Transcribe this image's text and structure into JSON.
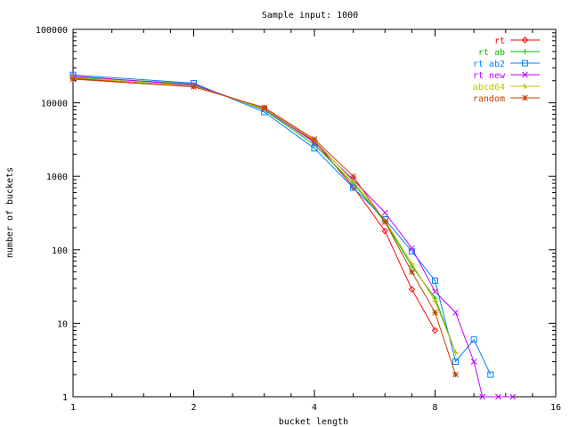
{
  "chart_data": {
    "type": "line",
    "title": "Sample input: 1000",
    "xlabel": "bucket length",
    "ylabel": "number of buckets",
    "x_scale": "log2",
    "y_scale": "log10",
    "xlim": [
      1,
      16
    ],
    "ylim": [
      1,
      100000
    ],
    "x_ticks": [
      1,
      2,
      4,
      8,
      16
    ],
    "x_tick_labels": [
      "1",
      "2",
      "4",
      "8",
      "16"
    ],
    "y_ticks": [
      1,
      10,
      100,
      1000,
      10000,
      100000
    ],
    "y_tick_labels": [
      "1",
      "10",
      "100",
      "1000",
      "10000",
      "100000"
    ],
    "grid": false,
    "legend_position": "top-right",
    "series": [
      {
        "name": "rt",
        "color": "#ff0000",
        "marker": "diamond",
        "points": [
          [
            1,
            21500
          ],
          [
            2,
            17000
          ],
          [
            3,
            8500
          ],
          [
            4,
            3000
          ],
          [
            5,
            720
          ],
          [
            6,
            180
          ],
          [
            7,
            29
          ],
          [
            8,
            8
          ]
        ]
      },
      {
        "name": "rt ab",
        "color": "#00c000",
        "marker": "plus",
        "points": [
          [
            1,
            22500
          ],
          [
            2,
            18000
          ],
          [
            3,
            8000
          ],
          [
            4,
            2700
          ],
          [
            5,
            800
          ],
          [
            6,
            240
          ],
          [
            7,
            60
          ],
          [
            8,
            22
          ],
          [
            9,
            4
          ]
        ]
      },
      {
        "name": "rt ab2",
        "color": "#0080ff",
        "marker": "square",
        "points": [
          [
            1,
            24000
          ],
          [
            2,
            18500
          ],
          [
            3,
            7500
          ],
          [
            4,
            2400
          ],
          [
            5,
            700
          ],
          [
            6,
            260
          ],
          [
            7,
            95
          ],
          [
            8,
            38
          ],
          [
            9,
            3
          ],
          [
            10,
            6
          ],
          [
            11,
            2
          ]
        ]
      },
      {
        "name": "rt new",
        "color": "#c000ff",
        "marker": "x",
        "points": [
          [
            1,
            23000
          ],
          [
            2,
            17500
          ],
          [
            3,
            8200
          ],
          [
            4,
            2900
          ],
          [
            5,
            900
          ],
          [
            6,
            320
          ],
          [
            7,
            105
          ],
          [
            8,
            27
          ],
          [
            9,
            14
          ],
          [
            10,
            3
          ],
          [
            10.5,
            1
          ],
          [
            11.5,
            1
          ],
          [
            12.5,
            1
          ]
        ]
      },
      {
        "name": "abcd64",
        "color": "#c0c000",
        "marker": "star",
        "points": [
          [
            1,
            22000
          ],
          [
            2,
            17000
          ],
          [
            3,
            8300
          ],
          [
            4,
            3100
          ],
          [
            5,
            850
          ],
          [
            6,
            250
          ],
          [
            7,
            65
          ],
          [
            8,
            20
          ],
          [
            9,
            4
          ]
        ]
      },
      {
        "name": "random",
        "color": "#c04000",
        "marker": "asterisk",
        "points": [
          [
            1,
            21000
          ],
          [
            2,
            16500
          ],
          [
            3,
            8600
          ],
          [
            4,
            3200
          ],
          [
            5,
            1000
          ],
          [
            6,
            240
          ],
          [
            7,
            50
          ],
          [
            8,
            14
          ],
          [
            9,
            2
          ]
        ]
      }
    ]
  }
}
